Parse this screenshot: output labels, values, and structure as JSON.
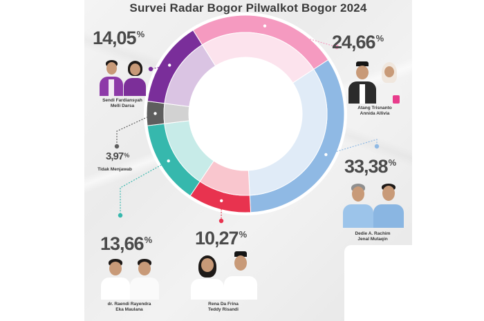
{
  "title": "Survei Radar Bogor Pilwalkot Bogor 2024",
  "chart_data": {
    "type": "pie",
    "title": "Survei Radar Bogor Pilwalkot Bogor 2024",
    "style": "donut",
    "labels": [
      "Atang Trisnanto / Annida Allivia",
      "Dedie A. Rachim / Jenal Mutaqin",
      "Rena Da Frina / Teddy Risandi",
      "dr. Raendi Rayendra / Eka Maulana",
      "Tidak Menjawab",
      "Sendi Fardiansyah / Melli Darsa"
    ],
    "values": [
      24.66,
      33.38,
      10.27,
      13.66,
      3.97,
      14.05
    ],
    "colors": [
      "#f59ac0",
      "#8fb9e4",
      "#e8334f",
      "#36b8ad",
      "#5e5e5e",
      "#7a2e9a"
    ]
  },
  "labels": {
    "atang": {
      "pct": "24,66",
      "names": [
        "Atang Trisnanto",
        "Annida Allivia"
      ]
    },
    "dedie": {
      "pct": "33,38",
      "names": [
        "Dedie A. Rachim",
        "Jenal Mutaqin"
      ]
    },
    "rena": {
      "pct": "10,27",
      "names": [
        "Rena Da Frina",
        "Teddy Risandi"
      ]
    },
    "raendi": {
      "pct": "13,66",
      "names": [
        "dr. Raendi Rayendra",
        "Eka Maulana"
      ]
    },
    "tidak": {
      "pct": "3,97",
      "names": [
        "Tidak Menjawab"
      ]
    },
    "sendi": {
      "pct": "14,05",
      "names": [
        "Sendi Fardiansyah",
        "Melli Darsa"
      ]
    },
    "percent_sign": "%"
  }
}
